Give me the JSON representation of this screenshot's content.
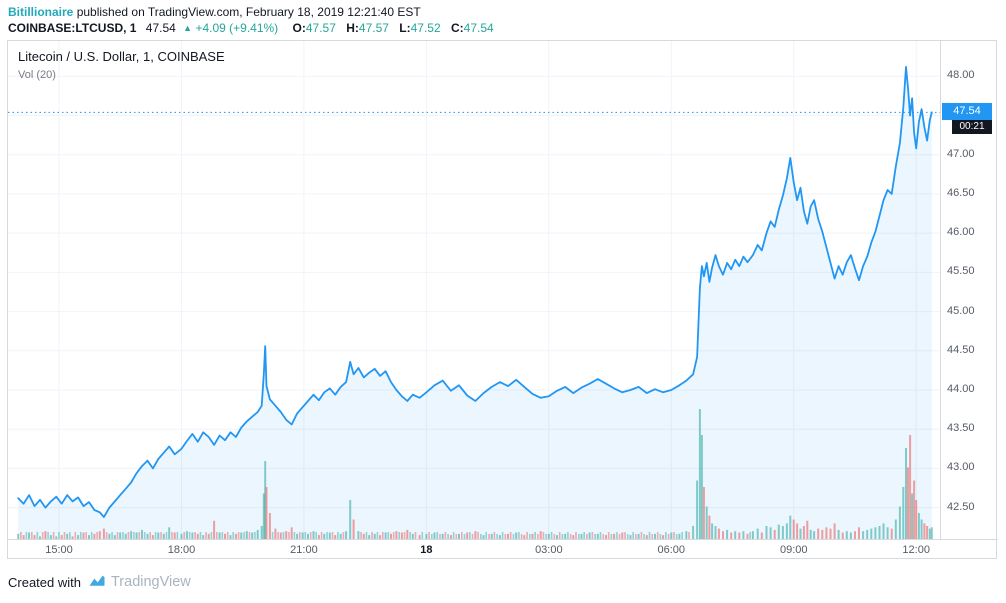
{
  "header": {
    "author": "Bitillionaire",
    "published": "published on TradingView.com, February 18, 2019 12:21:40 EST",
    "symbol_bar": {
      "symbol": "COINBASE:LTCUSD, 1",
      "last": "47.54",
      "arrow": "▲",
      "change": "+4.09 (+9.41%)",
      "ohlc": [
        {
          "label": "O:",
          "value": "47.57"
        },
        {
          "label": "H:",
          "value": "47.57"
        },
        {
          "label": "L:",
          "value": "47.52"
        },
        {
          "label": "C:",
          "value": "47.54"
        }
      ]
    }
  },
  "footer": {
    "created_with": "Created with",
    "brand": "TradingView"
  },
  "colors": {
    "author": "#23a8ba",
    "up": "#26a69a",
    "line": "#2196f3",
    "area_fill": "rgba(33,150,243,0.09)",
    "vol_up": "#26a69a",
    "vol_down": "#ef5350",
    "grid": "#f0f3fa",
    "axis_text": "#555b66",
    "border": "#d6dae0",
    "tag_bg": "#2196f3",
    "countdown_bg": "#131722",
    "brand_text": "#a9b4bf",
    "logo": "#3fa9e0"
  },
  "chart_data": {
    "type": "area",
    "title": "Litecoin / U.S. Dollar, 1, COINBASE",
    "volume_ma_label": "Vol (20)",
    "symbol": "COINBASE:LTCUSD",
    "interval": "1",
    "last_price": 47.54,
    "price_label_text": "47.54",
    "countdown": "00:21",
    "grid": true,
    "legend_position": "top-left",
    "y_ticks": [
      48.0,
      47.5,
      47.0,
      46.5,
      46.0,
      45.5,
      45.0,
      44.5,
      44.0,
      43.5,
      43.0,
      42.5
    ],
    "x_ticks": [
      {
        "t": 60,
        "label": "15:00"
      },
      {
        "t": 240,
        "label": "18:00"
      },
      {
        "t": 420,
        "label": "21:00"
      },
      {
        "t": 600,
        "label": "18",
        "bold": true
      },
      {
        "t": 780,
        "label": "03:00"
      },
      {
        "t": 960,
        "label": "06:00"
      },
      {
        "t": 1140,
        "label": "09:00"
      },
      {
        "t": 1320,
        "label": "12:00"
      }
    ],
    "x_range": [
      -15,
      1355
    ],
    "y_range": [
      42.1,
      48.45
    ],
    "columns": [
      "minutes_from_chart_start",
      "price_usd",
      "volume_rel_0_100"
    ],
    "points": [
      [
        0,
        42.62,
        4
      ],
      [
        8,
        42.55,
        3
      ],
      [
        16,
        42.66,
        5
      ],
      [
        24,
        42.52,
        3
      ],
      [
        32,
        42.6,
        2
      ],
      [
        40,
        42.5,
        6
      ],
      [
        48,
        42.58,
        3
      ],
      [
        56,
        42.64,
        2
      ],
      [
        64,
        42.55,
        3
      ],
      [
        72,
        42.66,
        4
      ],
      [
        80,
        42.58,
        2
      ],
      [
        88,
        42.63,
        3
      ],
      [
        96,
        42.52,
        5
      ],
      [
        104,
        42.57,
        3
      ],
      [
        112,
        42.47,
        4
      ],
      [
        120,
        42.44,
        6
      ],
      [
        126,
        42.38,
        8
      ],
      [
        134,
        42.5,
        4
      ],
      [
        142,
        42.58,
        3
      ],
      [
        150,
        42.66,
        5
      ],
      [
        158,
        42.74,
        4
      ],
      [
        166,
        42.82,
        6
      ],
      [
        174,
        42.94,
        5
      ],
      [
        182,
        43.03,
        7
      ],
      [
        190,
        43.1,
        4
      ],
      [
        198,
        43.0,
        3
      ],
      [
        206,
        43.12,
        5
      ],
      [
        214,
        43.2,
        4
      ],
      [
        222,
        43.28,
        9
      ],
      [
        230,
        43.18,
        5
      ],
      [
        240,
        43.25,
        4
      ],
      [
        248,
        43.35,
        6
      ],
      [
        256,
        43.44,
        5
      ],
      [
        264,
        43.34,
        4
      ],
      [
        272,
        43.46,
        3
      ],
      [
        280,
        43.4,
        4
      ],
      [
        288,
        43.3,
        14
      ],
      [
        296,
        43.42,
        5
      ],
      [
        304,
        43.36,
        4
      ],
      [
        312,
        43.46,
        3
      ],
      [
        320,
        43.4,
        4
      ],
      [
        328,
        43.52,
        5
      ],
      [
        336,
        43.6,
        6
      ],
      [
        344,
        43.66,
        5
      ],
      [
        352,
        43.72,
        7
      ],
      [
        358,
        43.8,
        10
      ],
      [
        361,
        44.2,
        35
      ],
      [
        363,
        44.56,
        60
      ],
      [
        365,
        44.05,
        40
      ],
      [
        370,
        43.88,
        20
      ],
      [
        378,
        43.8,
        8
      ],
      [
        386,
        43.72,
        5
      ],
      [
        394,
        43.62,
        6
      ],
      [
        402,
        43.56,
        9
      ],
      [
        410,
        43.7,
        4
      ],
      [
        418,
        43.78,
        5
      ],
      [
        426,
        43.86,
        4
      ],
      [
        434,
        43.94,
        6
      ],
      [
        442,
        43.87,
        3
      ],
      [
        450,
        43.97,
        4
      ],
      [
        458,
        44.02,
        5
      ],
      [
        466,
        43.94,
        3
      ],
      [
        474,
        44.04,
        4
      ],
      [
        482,
        44.1,
        6
      ],
      [
        488,
        44.36,
        30
      ],
      [
        493,
        44.2,
        15
      ],
      [
        500,
        44.28,
        6
      ],
      [
        508,
        44.16,
        4
      ],
      [
        516,
        44.22,
        3
      ],
      [
        524,
        44.27,
        4
      ],
      [
        532,
        44.18,
        3
      ],
      [
        540,
        44.24,
        5
      ],
      [
        548,
        44.1,
        4
      ],
      [
        556,
        44.0,
        6
      ],
      [
        564,
        43.92,
        5
      ],
      [
        572,
        43.86,
        7
      ],
      [
        580,
        43.94,
        4
      ],
      [
        590,
        43.9,
        3
      ],
      [
        600,
        43.97,
        4
      ],
      [
        612,
        44.06,
        5
      ],
      [
        624,
        44.12,
        4
      ],
      [
        636,
        43.99,
        3
      ],
      [
        648,
        44.06,
        4
      ],
      [
        660,
        43.93,
        5
      ],
      [
        672,
        43.86,
        6
      ],
      [
        684,
        43.96,
        3
      ],
      [
        696,
        44.04,
        4
      ],
      [
        708,
        44.1,
        3
      ],
      [
        720,
        44.05,
        4
      ],
      [
        732,
        44.13,
        5
      ],
      [
        744,
        44.04,
        3
      ],
      [
        756,
        43.95,
        4
      ],
      [
        768,
        43.9,
        6
      ],
      [
        780,
        43.92,
        4
      ],
      [
        792,
        43.99,
        3
      ],
      [
        804,
        44.04,
        4
      ],
      [
        816,
        43.96,
        3
      ],
      [
        828,
        44.03,
        4
      ],
      [
        840,
        44.08,
        5
      ],
      [
        852,
        44.14,
        4
      ],
      [
        864,
        44.08,
        3
      ],
      [
        876,
        44.02,
        4
      ],
      [
        888,
        43.97,
        5
      ],
      [
        900,
        44.0,
        3
      ],
      [
        912,
        44.04,
        4
      ],
      [
        924,
        43.96,
        3
      ],
      [
        936,
        44.01,
        4
      ],
      [
        948,
        43.97,
        3
      ],
      [
        960,
        44.0,
        5
      ],
      [
        972,
        44.06,
        4
      ],
      [
        982,
        44.12,
        6
      ],
      [
        992,
        44.2,
        10
      ],
      [
        998,
        44.42,
        45
      ],
      [
        1002,
        45.3,
        100
      ],
      [
        1005,
        45.58,
        80
      ],
      [
        1008,
        45.45,
        40
      ],
      [
        1012,
        45.62,
        25
      ],
      [
        1016,
        45.38,
        18
      ],
      [
        1020,
        45.56,
        12
      ],
      [
        1025,
        45.72,
        10
      ],
      [
        1030,
        45.58,
        8
      ],
      [
        1036,
        45.47,
        6
      ],
      [
        1042,
        45.62,
        7
      ],
      [
        1048,
        45.54,
        5
      ],
      [
        1054,
        45.66,
        6
      ],
      [
        1060,
        45.58,
        5
      ],
      [
        1066,
        45.7,
        6
      ],
      [
        1072,
        45.63,
        4
      ],
      [
        1080,
        45.72,
        6
      ],
      [
        1087,
        45.85,
        8
      ],
      [
        1093,
        45.78,
        5
      ],
      [
        1100,
        46.0,
        10
      ],
      [
        1106,
        46.15,
        9
      ],
      [
        1112,
        46.08,
        7
      ],
      [
        1118,
        46.3,
        11
      ],
      [
        1124,
        46.48,
        10
      ],
      [
        1130,
        46.7,
        12
      ],
      [
        1135,
        46.96,
        18
      ],
      [
        1140,
        46.65,
        15
      ],
      [
        1145,
        46.42,
        12
      ],
      [
        1150,
        46.58,
        8
      ],
      [
        1155,
        46.28,
        10
      ],
      [
        1160,
        46.12,
        14
      ],
      [
        1165,
        46.34,
        7
      ],
      [
        1170,
        46.42,
        6
      ],
      [
        1176,
        46.18,
        8
      ],
      [
        1182,
        46.02,
        7
      ],
      [
        1188,
        45.82,
        9
      ],
      [
        1194,
        45.62,
        8
      ],
      [
        1200,
        45.42,
        12
      ],
      [
        1206,
        45.58,
        7
      ],
      [
        1212,
        45.47,
        5
      ],
      [
        1218,
        45.63,
        6
      ],
      [
        1224,
        45.72,
        5
      ],
      [
        1230,
        45.55,
        6
      ],
      [
        1236,
        45.4,
        9
      ],
      [
        1242,
        45.58,
        6
      ],
      [
        1248,
        45.7,
        7
      ],
      [
        1254,
        45.88,
        8
      ],
      [
        1260,
        46.02,
        9
      ],
      [
        1266,
        46.22,
        10
      ],
      [
        1272,
        46.42,
        12
      ],
      [
        1278,
        46.55,
        9
      ],
      [
        1284,
        46.5,
        8
      ],
      [
        1290,
        46.85,
        15
      ],
      [
        1296,
        47.15,
        25
      ],
      [
        1301,
        47.6,
        40
      ],
      [
        1305,
        48.12,
        70
      ],
      [
        1308,
        47.85,
        55
      ],
      [
        1311,
        47.5,
        80
      ],
      [
        1314,
        47.72,
        35
      ],
      [
        1317,
        47.28,
        45
      ],
      [
        1320,
        47.08,
        30
      ],
      [
        1324,
        47.42,
        20
      ],
      [
        1328,
        47.58,
        15
      ],
      [
        1332,
        47.35,
        12
      ],
      [
        1336,
        47.18,
        10
      ],
      [
        1340,
        47.44,
        8
      ],
      [
        1343,
        47.54,
        9
      ]
    ]
  }
}
